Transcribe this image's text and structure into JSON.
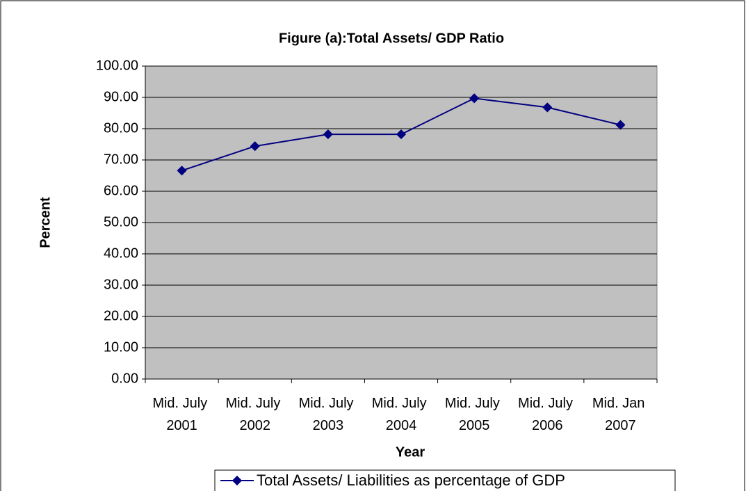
{
  "chart_data": {
    "type": "line",
    "title": "Figure (a):Total Assets/ GDP Ratio",
    "x_label": "Year",
    "y_label": "Percent",
    "categories": [
      "Mid. July 2001",
      "Mid. July 2002",
      "Mid. July 2003",
      "Mid. July 2004",
      "Mid. July 2005",
      "Mid. July 2006",
      "Mid. Jan 2007"
    ],
    "series": [
      {
        "name": "Total Assets/ Liabilities as percentage of GDP",
        "color": "#000080",
        "values": [
          66.6,
          74.4,
          78.2,
          78.2,
          89.7,
          86.8,
          81.2
        ]
      }
    ],
    "ylim": [
      0,
      100
    ],
    "yticks": [
      {
        "value": 0,
        "label": "0.00"
      },
      {
        "value": 10,
        "label": "10.00"
      },
      {
        "value": 20,
        "label": "20.00"
      },
      {
        "value": 30,
        "label": "30.00"
      },
      {
        "value": 40,
        "label": "40.00"
      },
      {
        "value": 50,
        "label": "50.00"
      },
      {
        "value": 60,
        "label": "60.00"
      },
      {
        "value": 70,
        "label": "70.00"
      },
      {
        "value": 80,
        "label": "80.00"
      },
      {
        "value": 90,
        "label": "90.00"
      },
      {
        "value": 100,
        "label": "100.00"
      }
    ],
    "grid": true,
    "legend": "bottom",
    "plot_background": "#c0c0c0"
  }
}
